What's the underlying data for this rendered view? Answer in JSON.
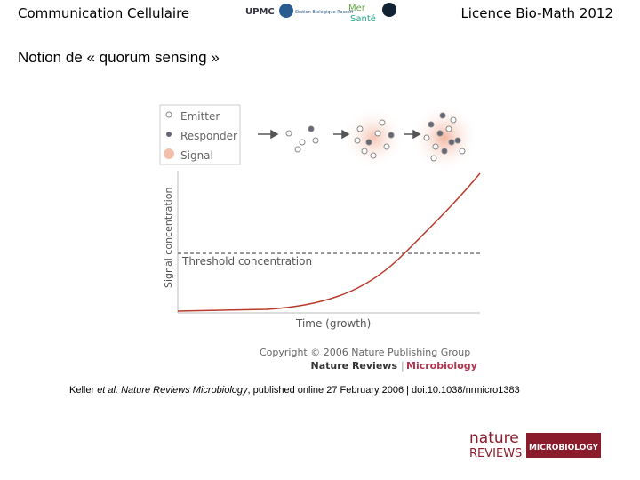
{
  "header": {
    "left": "Communication Cellulaire",
    "right": "Licence Bio-Math 2012",
    "logos": [
      "UPMC",
      "Station Biologique Roscoff",
      "Mer",
      "Santé"
    ]
  },
  "title": "Notion de « quorum sensing »",
  "figure": {
    "legend": [
      "Emitter",
      "Responder",
      "Signal"
    ],
    "y_label": "Signal concentration",
    "threshold_label": "Threshold concentration",
    "x_label": "Time (growth)",
    "copyright": "Copyright © 2006 Nature Publishing Group",
    "journal": "Nature Reviews",
    "section": "Microbiology"
  },
  "citation": [
    "Keller ",
    "et al.",
    " Nature Reviews Microbiology",
    ", published online 27 February 2006 | doi:10.1038/nrmicro1383"
  ],
  "footer_logo": [
    "nature",
    "REVIEWS",
    "MICROBIOLOGY"
  ]
}
